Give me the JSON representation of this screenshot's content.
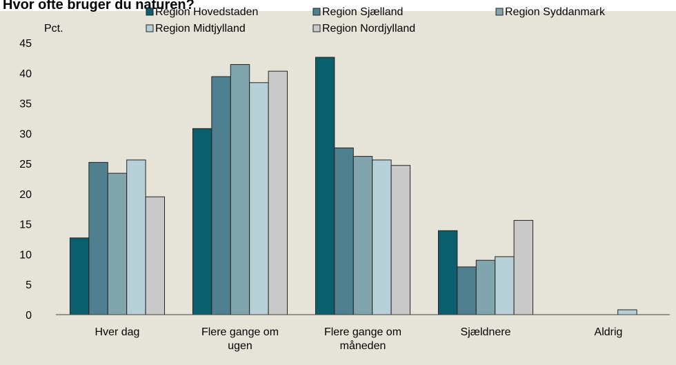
{
  "chart_data": {
    "type": "bar",
    "title": "Hvor ofte bruger du naturen?",
    "y_label": "Pct.",
    "categories": [
      "Hver dag",
      "Flere gange om ugen",
      "Flere gange om måneden",
      "Sjældnere",
      "Aldrig"
    ],
    "series": [
      {
        "name": "Region Hovedstaden",
        "color": "#0b5f6d",
        "values": [
          12.7,
          30.8,
          42.6,
          13.9,
          0
        ]
      },
      {
        "name": "Region Sjælland",
        "color": "#4e808f",
        "values": [
          25.2,
          39.4,
          27.6,
          7.9,
          0
        ]
      },
      {
        "name": "Region Syddanmark",
        "color": "#80a5ad",
        "values": [
          23.4,
          41.4,
          26.2,
          9.0,
          0
        ]
      },
      {
        "name": "Region Midtjylland",
        "color": "#b7cfd6",
        "values": [
          25.6,
          38.4,
          25.6,
          9.6,
          0.8
        ]
      },
      {
        "name": "Region Nordjylland",
        "color": "#c9c9c9",
        "values": [
          19.5,
          40.3,
          24.7,
          15.6,
          0
        ]
      }
    ],
    "ylim": [
      0,
      45
    ],
    "yticks": [
      0,
      5,
      10,
      15,
      20,
      25,
      30,
      35,
      40,
      45
    ],
    "grid": false
  }
}
